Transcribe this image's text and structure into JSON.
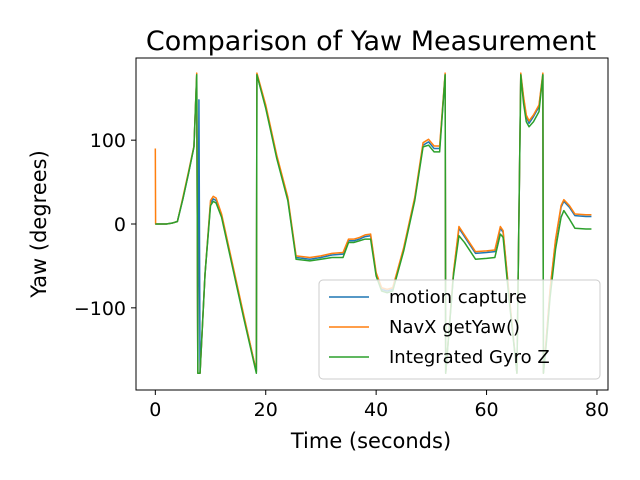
{
  "chart_data": {
    "type": "line",
    "title": "Comparison of Yaw Measurement",
    "xlabel": "Time (seconds)",
    "ylabel": "Yaw (degrees)",
    "xlim": [
      -3.5,
      82
    ],
    "ylim": [
      -198,
      198
    ],
    "xticks": [
      0,
      20,
      40,
      60,
      80
    ],
    "yticks": [
      -100,
      0,
      100
    ],
    "ytick_labels": [
      "−100",
      "0",
      "100"
    ],
    "legend_position": "lower right",
    "grid": false,
    "series": [
      {
        "name": "motion capture",
        "color": "#1f77b4",
        "points": [
          [
            0,
            0
          ],
          [
            2,
            0
          ],
          [
            3,
            1
          ],
          [
            4,
            3
          ],
          [
            5,
            30
          ],
          [
            6,
            60
          ],
          [
            7,
            92
          ],
          [
            7.5,
            178
          ],
          [
            7.7,
            -178
          ],
          [
            7.9,
            148
          ],
          [
            8.1,
            -178
          ],
          [
            9,
            -60
          ],
          [
            10,
            25
          ],
          [
            10.5,
            30
          ],
          [
            11,
            28
          ],
          [
            12,
            10
          ],
          [
            14,
            -50
          ],
          [
            16,
            -110
          ],
          [
            18.3,
            -176
          ],
          [
            18.4,
            178
          ],
          [
            20,
            140
          ],
          [
            22,
            80
          ],
          [
            24,
            30
          ],
          [
            25.5,
            -40
          ],
          [
            28,
            -42
          ],
          [
            30,
            -40
          ],
          [
            32,
            -37
          ],
          [
            34,
            -36
          ],
          [
            35,
            -20
          ],
          [
            36,
            -20
          ],
          [
            37,
            -18
          ],
          [
            38,
            -15
          ],
          [
            39,
            -14
          ],
          [
            40,
            -60
          ],
          [
            41,
            -78
          ],
          [
            42,
            -80
          ],
          [
            43,
            -78
          ],
          [
            45,
            -30
          ],
          [
            47,
            30
          ],
          [
            48.5,
            94
          ],
          [
            49.5,
            98
          ],
          [
            50.5,
            90
          ],
          [
            51.5,
            90
          ],
          [
            52.5,
            178
          ],
          [
            52.6,
            -178
          ],
          [
            54,
            -60
          ],
          [
            55,
            -5
          ],
          [
            56,
            -15
          ],
          [
            57,
            -25
          ],
          [
            58,
            -35
          ],
          [
            60,
            -34
          ],
          [
            61.5,
            -33
          ],
          [
            62.5,
            -5
          ],
          [
            63,
            -10
          ],
          [
            64,
            -80
          ],
          [
            65.5,
            -178
          ],
          [
            66.2,
            178
          ],
          [
            66.7,
            150
          ],
          [
            67.2,
            128
          ],
          [
            67.7,
            120
          ],
          [
            68.5,
            128
          ],
          [
            69.5,
            140
          ],
          [
            70.2,
            178
          ],
          [
            70.3,
            -178
          ],
          [
            70.8,
            -140
          ],
          [
            71.5,
            -80
          ],
          [
            72.5,
            -20
          ],
          [
            73.5,
            20
          ],
          [
            74,
            27
          ],
          [
            75,
            20
          ],
          [
            76,
            10
          ],
          [
            78,
            9
          ],
          [
            79,
            9
          ]
        ]
      },
      {
        "name": "NavX getYaw()",
        "color": "#ff7f0e",
        "points": [
          [
            0,
            90
          ],
          [
            0.05,
            0
          ],
          [
            2,
            0
          ],
          [
            3,
            1
          ],
          [
            4,
            3
          ],
          [
            5,
            32
          ],
          [
            6,
            62
          ],
          [
            7,
            93
          ],
          [
            7.5,
            180
          ],
          [
            7.7,
            -178
          ],
          [
            8.1,
            -178
          ],
          [
            9,
            -60
          ],
          [
            10,
            28
          ],
          [
            10.5,
            33
          ],
          [
            11,
            31
          ],
          [
            12,
            12
          ],
          [
            14,
            -48
          ],
          [
            16,
            -108
          ],
          [
            18.3,
            -176
          ],
          [
            18.4,
            180
          ],
          [
            20,
            142
          ],
          [
            22,
            82
          ],
          [
            24,
            32
          ],
          [
            25.5,
            -38
          ],
          [
            28,
            -40
          ],
          [
            30,
            -38
          ],
          [
            32,
            -35
          ],
          [
            34,
            -34
          ],
          [
            35,
            -18
          ],
          [
            36,
            -18
          ],
          [
            37,
            -16
          ],
          [
            38,
            -13
          ],
          [
            39,
            -12
          ],
          [
            40,
            -58
          ],
          [
            41,
            -76
          ],
          [
            42,
            -78
          ],
          [
            43,
            -76
          ],
          [
            45,
            -28
          ],
          [
            47,
            32
          ],
          [
            48.5,
            97
          ],
          [
            49.5,
            101
          ],
          [
            50.5,
            93
          ],
          [
            51.5,
            93
          ],
          [
            52.5,
            180
          ],
          [
            52.6,
            -178
          ],
          [
            54,
            -58
          ],
          [
            55,
            -3
          ],
          [
            56,
            -13
          ],
          [
            57,
            -23
          ],
          [
            58,
            -33
          ],
          [
            60,
            -32
          ],
          [
            61.5,
            -31
          ],
          [
            62.5,
            -3
          ],
          [
            63,
            -8
          ],
          [
            64,
            -78
          ],
          [
            65.5,
            -178
          ],
          [
            66.2,
            180
          ],
          [
            66.7,
            152
          ],
          [
            67.2,
            130
          ],
          [
            67.7,
            123
          ],
          [
            68.5,
            130
          ],
          [
            69.5,
            142
          ],
          [
            70.2,
            180
          ],
          [
            70.3,
            -178
          ],
          [
            70.8,
            -138
          ],
          [
            71.5,
            -78
          ],
          [
            72.5,
            -18
          ],
          [
            73.5,
            22
          ],
          [
            74,
            29
          ],
          [
            75,
            22
          ],
          [
            76,
            12
          ],
          [
            78,
            11
          ],
          [
            79,
            11
          ]
        ]
      },
      {
        "name": "Integrated Gyro Z",
        "color": "#2ca02c",
        "points": [
          [
            0,
            0
          ],
          [
            2,
            0
          ],
          [
            3,
            1
          ],
          [
            4,
            3
          ],
          [
            5,
            30
          ],
          [
            6,
            60
          ],
          [
            7,
            92
          ],
          [
            7.5,
            178
          ],
          [
            7.7,
            -178
          ],
          [
            8.1,
            -178
          ],
          [
            9,
            -60
          ],
          [
            10,
            22
          ],
          [
            10.5,
            27
          ],
          [
            11,
            25
          ],
          [
            12,
            8
          ],
          [
            14,
            -52
          ],
          [
            16,
            -112
          ],
          [
            18.3,
            -178
          ],
          [
            18.4,
            178
          ],
          [
            20,
            138
          ],
          [
            22,
            78
          ],
          [
            24,
            28
          ],
          [
            25.5,
            -42
          ],
          [
            28,
            -44
          ],
          [
            30,
            -42
          ],
          [
            32,
            -40
          ],
          [
            34,
            -40
          ],
          [
            35,
            -22
          ],
          [
            36,
            -22
          ],
          [
            37,
            -20
          ],
          [
            38,
            -18
          ],
          [
            39,
            -18
          ],
          [
            40,
            -62
          ],
          [
            41,
            -80
          ],
          [
            42,
            -82
          ],
          [
            43,
            -80
          ],
          [
            45,
            -32
          ],
          [
            47,
            28
          ],
          [
            48.5,
            92
          ],
          [
            49.5,
            94
          ],
          [
            50.5,
            86
          ],
          [
            51.5,
            86
          ],
          [
            52.5,
            178
          ],
          [
            52.6,
            -178
          ],
          [
            54,
            -62
          ],
          [
            55,
            -14
          ],
          [
            56,
            -22
          ],
          [
            57,
            -32
          ],
          [
            58,
            -42
          ],
          [
            60,
            -41
          ],
          [
            61.5,
            -40
          ],
          [
            62.5,
            -12
          ],
          [
            63,
            -16
          ],
          [
            64,
            -85
          ],
          [
            65.5,
            -178
          ],
          [
            66.2,
            178
          ],
          [
            66.7,
            144
          ],
          [
            67.2,
            122
          ],
          [
            67.7,
            116
          ],
          [
            68.5,
            122
          ],
          [
            69.5,
            134
          ],
          [
            70.2,
            178
          ],
          [
            70.3,
            -178
          ],
          [
            70.8,
            -145
          ],
          [
            71.5,
            -88
          ],
          [
            72.5,
            -30
          ],
          [
            73.5,
            8
          ],
          [
            74,
            16
          ],
          [
            75,
            6
          ],
          [
            76,
            -5
          ],
          [
            78,
            -6
          ],
          [
            79,
            -6
          ]
        ]
      }
    ]
  }
}
